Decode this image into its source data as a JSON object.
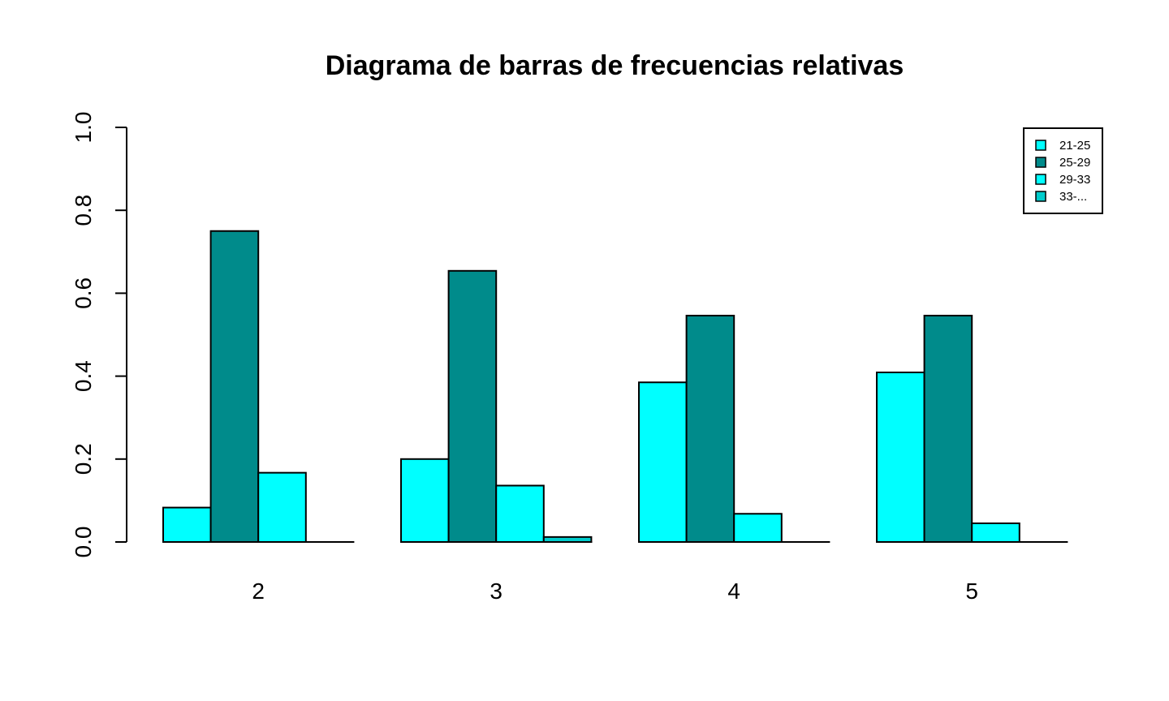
{
  "chart_data": {
    "type": "bar",
    "mode": "grouped",
    "title": "Diagrama de barras de frecuencias relativas",
    "xlabel": "",
    "ylabel": "",
    "ylim": [
      0,
      1
    ],
    "yticks": [
      0,
      0.2,
      0.4,
      0.6,
      0.8,
      1
    ],
    "ytick_labels": [
      "0.0",
      "0.2",
      "0.4",
      "0.6",
      "0.8",
      "1.0"
    ],
    "categories": [
      "2",
      "3",
      "4",
      "5"
    ],
    "series": [
      {
        "name": "21-25",
        "color": "#00FFFF",
        "values": [
          0.083,
          0.2,
          0.385,
          0.409
        ]
      },
      {
        "name": "25-29",
        "color": "#008B8B",
        "values": [
          0.75,
          0.654,
          0.546,
          0.546
        ]
      },
      {
        "name": "29-33",
        "color": "#00FFFF",
        "values": [
          0.167,
          0.136,
          0.068,
          0.045
        ]
      },
      {
        "name": "33-...",
        "color": "#00CDCD",
        "values": [
          0,
          0.012,
          0,
          0
        ]
      }
    ],
    "legend": {
      "position": "top-right"
    },
    "grid": false
  }
}
